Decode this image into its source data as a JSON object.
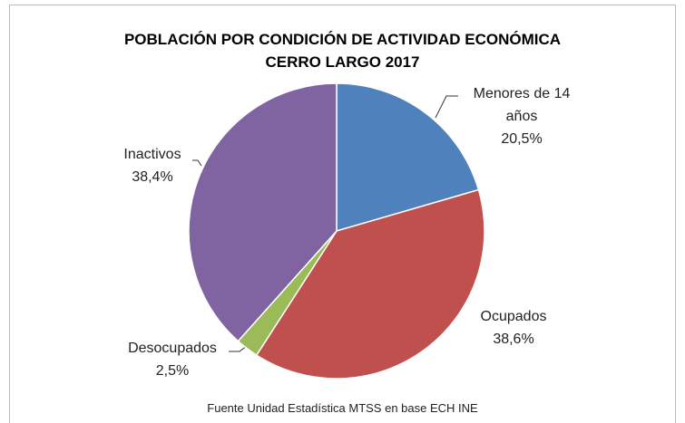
{
  "chart_data": {
    "type": "pie",
    "title": [
      "POBLACIÓN POR CONDICIÓN DE ACTIVIDAD ECONÓMICA",
      "CERRO LARGO 2017"
    ],
    "categories": [
      "Menores de 14 años",
      "Ocupados",
      "Desocupados",
      "Inactivos"
    ],
    "values": [
      20.5,
      38.6,
      2.5,
      38.4
    ],
    "value_labels": [
      "20,5%",
      "38,6%",
      "2,5%",
      "38,4%"
    ],
    "colors": [
      "#4f81bd",
      "#c0504d",
      "#9bbb59",
      "#8064a2"
    ],
    "note": "Fuente Unidad Estadística MTSS en base ECH INE"
  }
}
